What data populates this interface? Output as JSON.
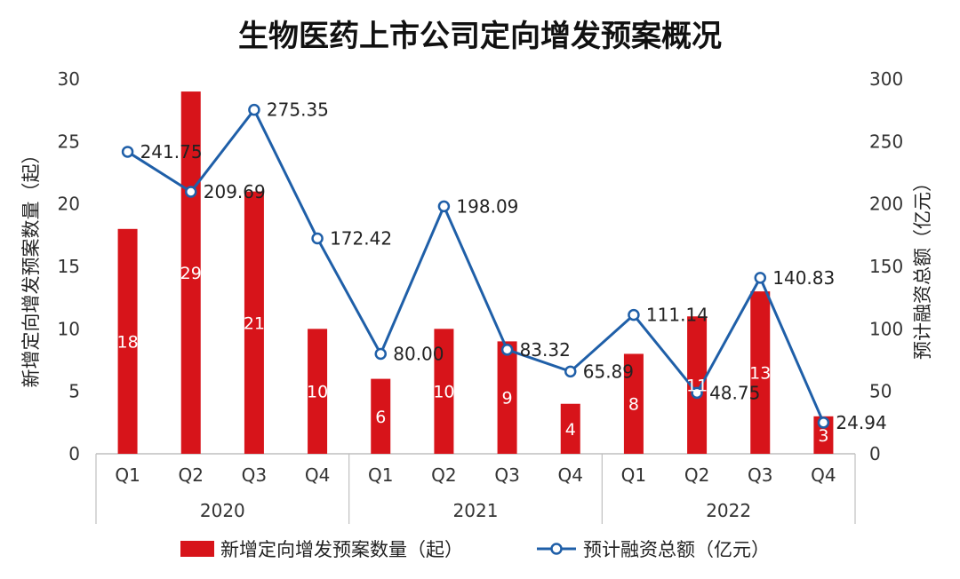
{
  "chart_data": {
    "type": "bar+line",
    "title": "生物医药上市公司定向增发预案概况",
    "categories": [
      "Q1",
      "Q2",
      "Q3",
      "Q4",
      "Q1",
      "Q2",
      "Q3",
      "Q4",
      "Q1",
      "Q2",
      "Q3",
      "Q4"
    ],
    "groups": [
      {
        "label": "2020",
        "count": 4
      },
      {
        "label": "2021",
        "count": 4
      },
      {
        "label": "2022",
        "count": 4
      }
    ],
    "series": [
      {
        "name": "新增定向增发预案数量（起）",
        "type": "bar",
        "axis": "left",
        "color": "#D7141A",
        "values": [
          18,
          29,
          21,
          10,
          6,
          10,
          9,
          4,
          8,
          11,
          13,
          3
        ],
        "labels": [
          "18",
          "29",
          "21",
          "10",
          "6",
          "10",
          "9",
          "4",
          "8",
          "11",
          "13",
          "3"
        ]
      },
      {
        "name": "预计融资总额（亿元）",
        "type": "line",
        "axis": "right",
        "color": "#1F5FA8",
        "values": [
          241.75,
          209.69,
          275.35,
          172.42,
          80.0,
          198.09,
          83.32,
          65.89,
          111.14,
          48.75,
          140.83,
          24.94
        ],
        "labels": [
          "241.75",
          "209.69",
          "275.35",
          "172.42",
          "80.00",
          "198.09",
          "83.32",
          "65.89",
          "111.14",
          "48.75",
          "140.83",
          "24.94"
        ]
      }
    ],
    "y_left": {
      "label": "新增定向增发预案数量（起）",
      "range": [
        0,
        30
      ],
      "ticks": [
        "0",
        "5",
        "10",
        "15",
        "20",
        "25",
        "30"
      ]
    },
    "y_right": {
      "label": "预计融资总额（亿元）",
      "range": [
        0,
        300
      ],
      "ticks": [
        "0",
        "50",
        "100",
        "150",
        "200",
        "250",
        "300"
      ]
    },
    "grid": false,
    "legend": "bottom"
  }
}
